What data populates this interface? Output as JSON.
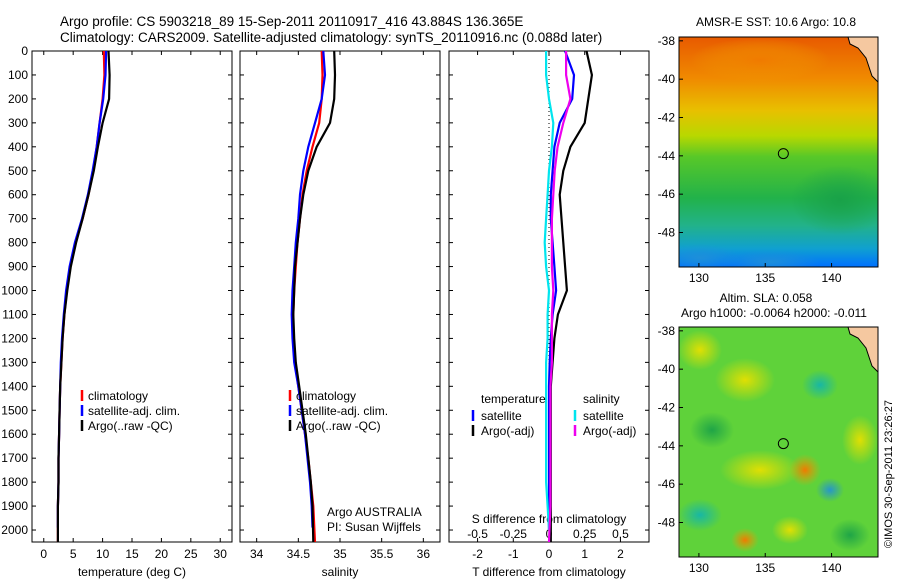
{
  "header": {
    "line1": "Argo profile: CS 5903218_89 15-Sep-2011 20110917_416 43.884S 136.365E",
    "line2": "Climatology: CARS2009. Satellite-adjusted climatology: synTS_20110916.nc (0.088d later)"
  },
  "copyright": "©IMOS 30-Sep-2011 23:26:27",
  "colors": {
    "climatology": "#ff0000",
    "satellite": "#0000ff",
    "argo": "#000000",
    "sat_salinity": "#00e5ee",
    "argo_salinity": "#ee00ee"
  },
  "depth_ticks": [
    0,
    100,
    200,
    300,
    400,
    500,
    600,
    700,
    800,
    900,
    1000,
    1100,
    1200,
    1300,
    1400,
    1500,
    1600,
    1700,
    1800,
    1900,
    2000
  ],
  "chart_data": [
    {
      "type": "line",
      "xlabel": "temperature (deg C)",
      "xlim": [
        -2,
        32
      ],
      "ylim": [
        2050,
        0
      ],
      "xticks": [
        0,
        5,
        10,
        15,
        20,
        25,
        30
      ],
      "yticks": [
        0,
        100,
        200,
        300,
        400,
        500,
        600,
        700,
        800,
        900,
        1000,
        1100,
        1200,
        1300,
        1400,
        1500,
        1600,
        1700,
        1800,
        1900,
        2000
      ],
      "legend": [
        "climatology",
        "satellite-adj. clim.",
        "Argo(..raw -QC)"
      ],
      "legend_position": "lower-center",
      "series": [
        {
          "name": "climatology",
          "color": "#ff0000",
          "x": [
            10.2,
            10.3,
            10.0,
            9.5,
            9.0,
            8.4,
            7.6,
            6.6,
            5.4,
            4.5,
            3.9,
            3.5,
            3.2,
            3.0,
            2.8,
            2.7,
            2.6,
            2.5,
            2.5,
            2.4,
            2.4
          ],
          "y": [
            0,
            100,
            200,
            300,
            400,
            500,
            600,
            700,
            800,
            900,
            1000,
            1100,
            1200,
            1300,
            1400,
            1500,
            1600,
            1700,
            1800,
            1900,
            2050
          ]
        },
        {
          "name": "satellite-adj. clim.",
          "color": "#0000ff",
          "x": [
            10.6,
            10.5,
            10.1,
            9.5,
            9.0,
            8.3,
            7.5,
            6.5,
            5.3,
            4.4,
            3.8,
            3.4,
            3.1,
            2.9,
            2.8,
            2.7,
            2.6,
            2.5,
            2.5,
            2.4,
            2.4
          ],
          "y": [
            0,
            100,
            200,
            300,
            400,
            500,
            600,
            700,
            800,
            900,
            1000,
            1100,
            1200,
            1300,
            1400,
            1500,
            1600,
            1700,
            1800,
            1900,
            1990
          ]
        },
        {
          "name": "Argo(..raw -QC)",
          "color": "#000000",
          "x": [
            11.0,
            11.2,
            11.1,
            10.0,
            9.2,
            8.5,
            7.6,
            6.6,
            5.5,
            4.6,
            4.0,
            3.5,
            3.2,
            3.0,
            2.8,
            2.7,
            2.6,
            2.5,
            2.5,
            2.4,
            2.4
          ],
          "y": [
            0,
            100,
            200,
            300,
            400,
            500,
            600,
            700,
            800,
            900,
            1000,
            1100,
            1200,
            1300,
            1400,
            1500,
            1600,
            1700,
            1800,
            1900,
            2050
          ]
        }
      ]
    },
    {
      "type": "line",
      "xlabel": "salinity",
      "xlim": [
        33.8,
        36.2
      ],
      "ylim": [
        2050,
        0
      ],
      "xticks": [
        34,
        34.5,
        35,
        35.5,
        36
      ],
      "legend": [
        "climatology",
        "satellite-adj. clim.",
        "Argo(..raw -QC)"
      ],
      "legend_position": "lower-center",
      "annotation": [
        "Argo AUSTRALIA",
        "PI: Susan Wijffels"
      ],
      "series": [
        {
          "name": "climatology",
          "color": "#ff0000",
          "x": [
            34.78,
            34.79,
            34.78,
            34.75,
            34.67,
            34.6,
            34.55,
            34.52,
            34.49,
            34.47,
            34.45,
            34.44,
            34.44,
            34.46,
            34.5,
            34.54,
            34.58,
            34.62,
            34.65,
            34.68,
            34.7
          ],
          "y": [
            0,
            100,
            200,
            300,
            400,
            500,
            600,
            700,
            800,
            900,
            1000,
            1100,
            1200,
            1300,
            1400,
            1500,
            1600,
            1700,
            1800,
            1900,
            2050
          ]
        },
        {
          "name": "satellite-adj. clim.",
          "color": "#0000ff",
          "x": [
            34.8,
            34.82,
            34.78,
            34.7,
            34.62,
            34.56,
            34.52,
            34.5,
            34.47,
            34.45,
            34.43,
            34.42,
            34.43,
            34.45,
            34.5,
            34.54,
            34.58,
            34.61,
            34.64,
            34.66,
            34.67
          ],
          "y": [
            0,
            100,
            200,
            300,
            400,
            500,
            600,
            700,
            800,
            900,
            1000,
            1100,
            1200,
            1300,
            1400,
            1500,
            1600,
            1700,
            1800,
            1900,
            1990
          ]
        },
        {
          "name": "Argo(..raw -QC)",
          "color": "#000000",
          "x": [
            34.93,
            34.94,
            34.93,
            34.88,
            34.72,
            34.62,
            34.56,
            34.52,
            34.49,
            34.46,
            34.45,
            34.44,
            34.45,
            34.47,
            34.51,
            34.55,
            34.59,
            34.62,
            34.65,
            34.67,
            34.68
          ],
          "y": [
            0,
            100,
            200,
            300,
            400,
            500,
            600,
            700,
            800,
            900,
            1000,
            1100,
            1200,
            1300,
            1400,
            1500,
            1600,
            1700,
            1800,
            1900,
            2050
          ]
        }
      ]
    },
    {
      "type": "line",
      "xlabel": "T difference from climatology",
      "xlabel_top": "S difference from climatology",
      "xlim": [
        -2.8,
        2.8
      ],
      "ylim": [
        2050,
        0
      ],
      "xticks": [
        -2,
        -1,
        0,
        1,
        2
      ],
      "xticks_top": [
        -0.5,
        -0.25,
        0,
        0.25,
        0.5
      ],
      "legend_headers": [
        "temperature",
        "salinity"
      ],
      "legend": [
        "satellite",
        "Argo(-adj)",
        "satellite",
        "Argo(-adj)"
      ],
      "legend_position": "lower-center",
      "series": [
        {
          "name": "temperature satellite",
          "color": "#0000ff",
          "x": [
            0.45,
            0.7,
            0.65,
            0.3,
            0.15,
            0.1,
            0.05,
            0.05,
            0.1,
            0.15,
            0.2,
            0.1,
            0.05,
            0.02,
            0.0,
            0.0,
            0.0,
            0.0,
            0.0,
            0.0,
            0.0
          ],
          "y": [
            0,
            100,
            200,
            300,
            400,
            500,
            600,
            700,
            800,
            900,
            1000,
            1100,
            1200,
            1300,
            1400,
            1500,
            1600,
            1700,
            1800,
            1900,
            2000
          ]
        },
        {
          "name": "temperature Argo(-adj)",
          "color": "#000000",
          "x": [
            1.05,
            1.2,
            1.1,
            1.0,
            0.6,
            0.4,
            0.3,
            0.35,
            0.4,
            0.45,
            0.5,
            0.25,
            0.15,
            0.1,
            0.05,
            0.05,
            0.05,
            0.05,
            0.05,
            0.05,
            0.05
          ],
          "y": [
            0,
            100,
            200,
            300,
            400,
            500,
            600,
            700,
            800,
            900,
            1000,
            1100,
            1200,
            1300,
            1400,
            1500,
            1600,
            1700,
            1800,
            1900,
            2050
          ]
        },
        {
          "name": "salinity satellite",
          "color": "#00e5ee",
          "x": [
            -0.02,
            -0.02,
            0.0,
            0.03,
            0.02,
            0.0,
            -0.01,
            -0.02,
            -0.03,
            -0.02,
            0.0,
            -0.01,
            -0.01,
            -0.02,
            -0.02,
            -0.02,
            -0.02,
            -0.02,
            -0.02,
            -0.01,
            0.0
          ],
          "y": [
            0,
            100,
            200,
            300,
            400,
            500,
            600,
            700,
            800,
            900,
            1000,
            1100,
            1200,
            1300,
            1400,
            1500,
            1600,
            1700,
            1800,
            1900,
            2000
          ]
        },
        {
          "name": "salinity Argo(-adj)",
          "color": "#ee00ee",
          "x": [
            0.12,
            0.12,
            0.15,
            0.1,
            0.06,
            0.04,
            0.03,
            0.02,
            0.02,
            0.02,
            0.03,
            0.02,
            0.02,
            0.02,
            0.01,
            0.01,
            0.01,
            0.01,
            0.01,
            0.01,
            0.0
          ],
          "y": [
            0,
            100,
            200,
            300,
            400,
            500,
            600,
            700,
            800,
            900,
            1000,
            1100,
            1200,
            1300,
            1400,
            1500,
            1600,
            1700,
            1800,
            1900,
            2050
          ]
        }
      ]
    },
    {
      "type": "heatmap",
      "title": "AMSR-E SST: 10.6 Argo: 10.8",
      "xlim": [
        128.5,
        143.5
      ],
      "ylim": [
        -49.8,
        -37.8
      ],
      "xticks": [
        130,
        135,
        140
      ],
      "yticks": [
        -38,
        -40,
        -42,
        -44,
        -46,
        -48
      ],
      "float_position": {
        "lon": 136.365,
        "lat": -43.884
      }
    },
    {
      "type": "heatmap",
      "title": "Altim. SLA: 0.058",
      "subtitle": "Argo h1000: -0.0064 h2000: -0.011",
      "xlim": [
        128.5,
        143.5
      ],
      "ylim": [
        -49.8,
        -37.8
      ],
      "xticks": [
        130,
        135,
        140
      ],
      "yticks": [
        -38,
        -40,
        -42,
        -44,
        -46,
        -48
      ],
      "float_position": {
        "lon": 136.365,
        "lat": -43.884
      }
    }
  ]
}
